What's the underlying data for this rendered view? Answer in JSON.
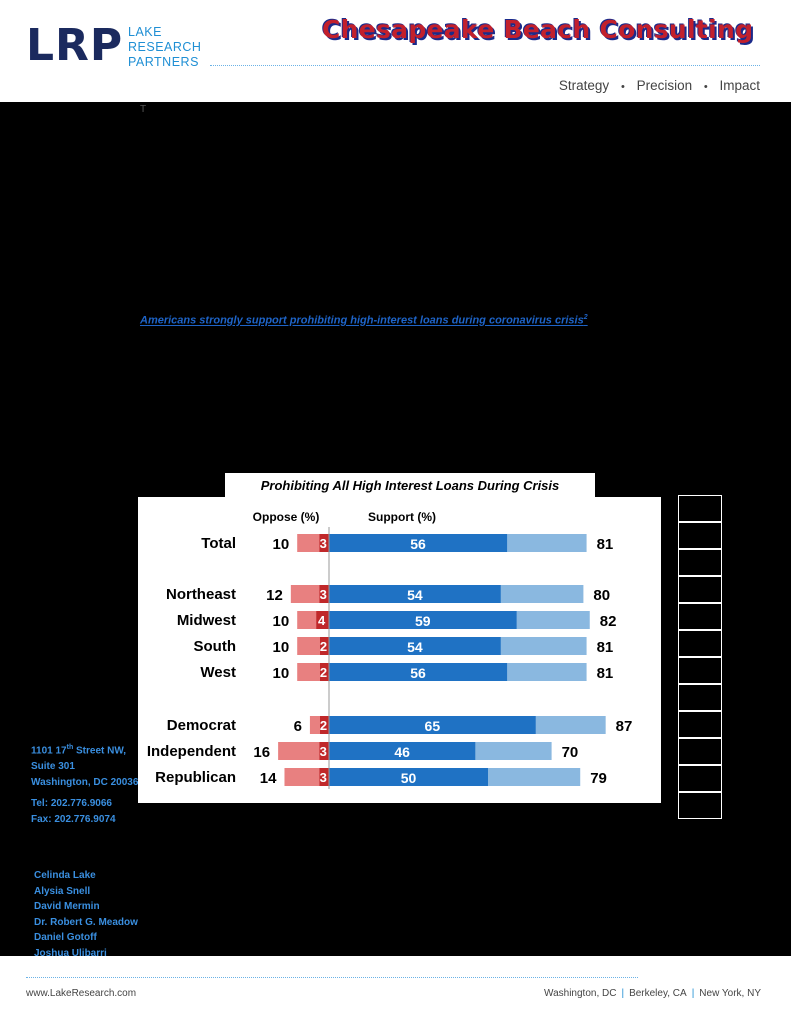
{
  "header": {
    "logo_letters": "LRP",
    "logo_line1": "LAKE",
    "logo_line2": "RESEARCH",
    "logo_line3": "PARTNERS",
    "partner_name": "Chesapeake Beach Consulting",
    "tagline": [
      "Strategy",
      "Precision",
      "Impact"
    ],
    "tagline_sep": "•"
  },
  "body": {
    "t_mark": "T",
    "link_text": "Americans strongly support prohibiting high-interest loans during coronavirus crisis",
    "link_sup": "2"
  },
  "chart_data": {
    "type": "bar",
    "title": "Prohibiting All High Interest Loans During Crisis",
    "oppose_header": "Oppose (%)",
    "support_header": "Support (%)",
    "categories": [
      "Total",
      "Northeast",
      "Midwest",
      "South",
      "West",
      "Democrat",
      "Independent",
      "Republican"
    ],
    "series": [
      {
        "name": "Oppose (%)",
        "values": [
          10,
          12,
          10,
          10,
          10,
          6,
          16,
          14
        ]
      },
      {
        "name": "Oppose (%)",
        "values": [
          3,
          3,
          4,
          2,
          2,
          2,
          3,
          3
        ]
      },
      {
        "name": "Support (%)",
        "values": [
          56,
          54,
          59,
          54,
          56,
          65,
          46,
          50
        ]
      },
      {
        "name": "Support (%)",
        "values": [
          81,
          80,
          82,
          81,
          81,
          87,
          70,
          79
        ]
      }
    ],
    "colors": {
      "oppose_total": "#e88080",
      "oppose_strong": "#c0282a",
      "support_strong": "#1f72c4",
      "support_total": "#8ab8e0",
      "divider": "#999999"
    }
  },
  "sidebar": {
    "address": [
      "1101 17",
      "th",
      " Street NW,",
      "Suite 301",
      "Washington, DC 20036"
    ],
    "tel": "Tel: 202.776.9066",
    "fax": "Fax: 202.776.9074",
    "people": [
      "Celinda Lake",
      "Alysia Snell",
      "David Mermin",
      "Dr. Robert G. Meadow",
      "Daniel Gotoff",
      "Joshua Ulibarri"
    ]
  },
  "footer": {
    "url": "www.LakeResearch.com",
    "cities": [
      "Washington, DC",
      "Berkeley, CA",
      "New York, NY"
    ],
    "city_sep": "|"
  }
}
